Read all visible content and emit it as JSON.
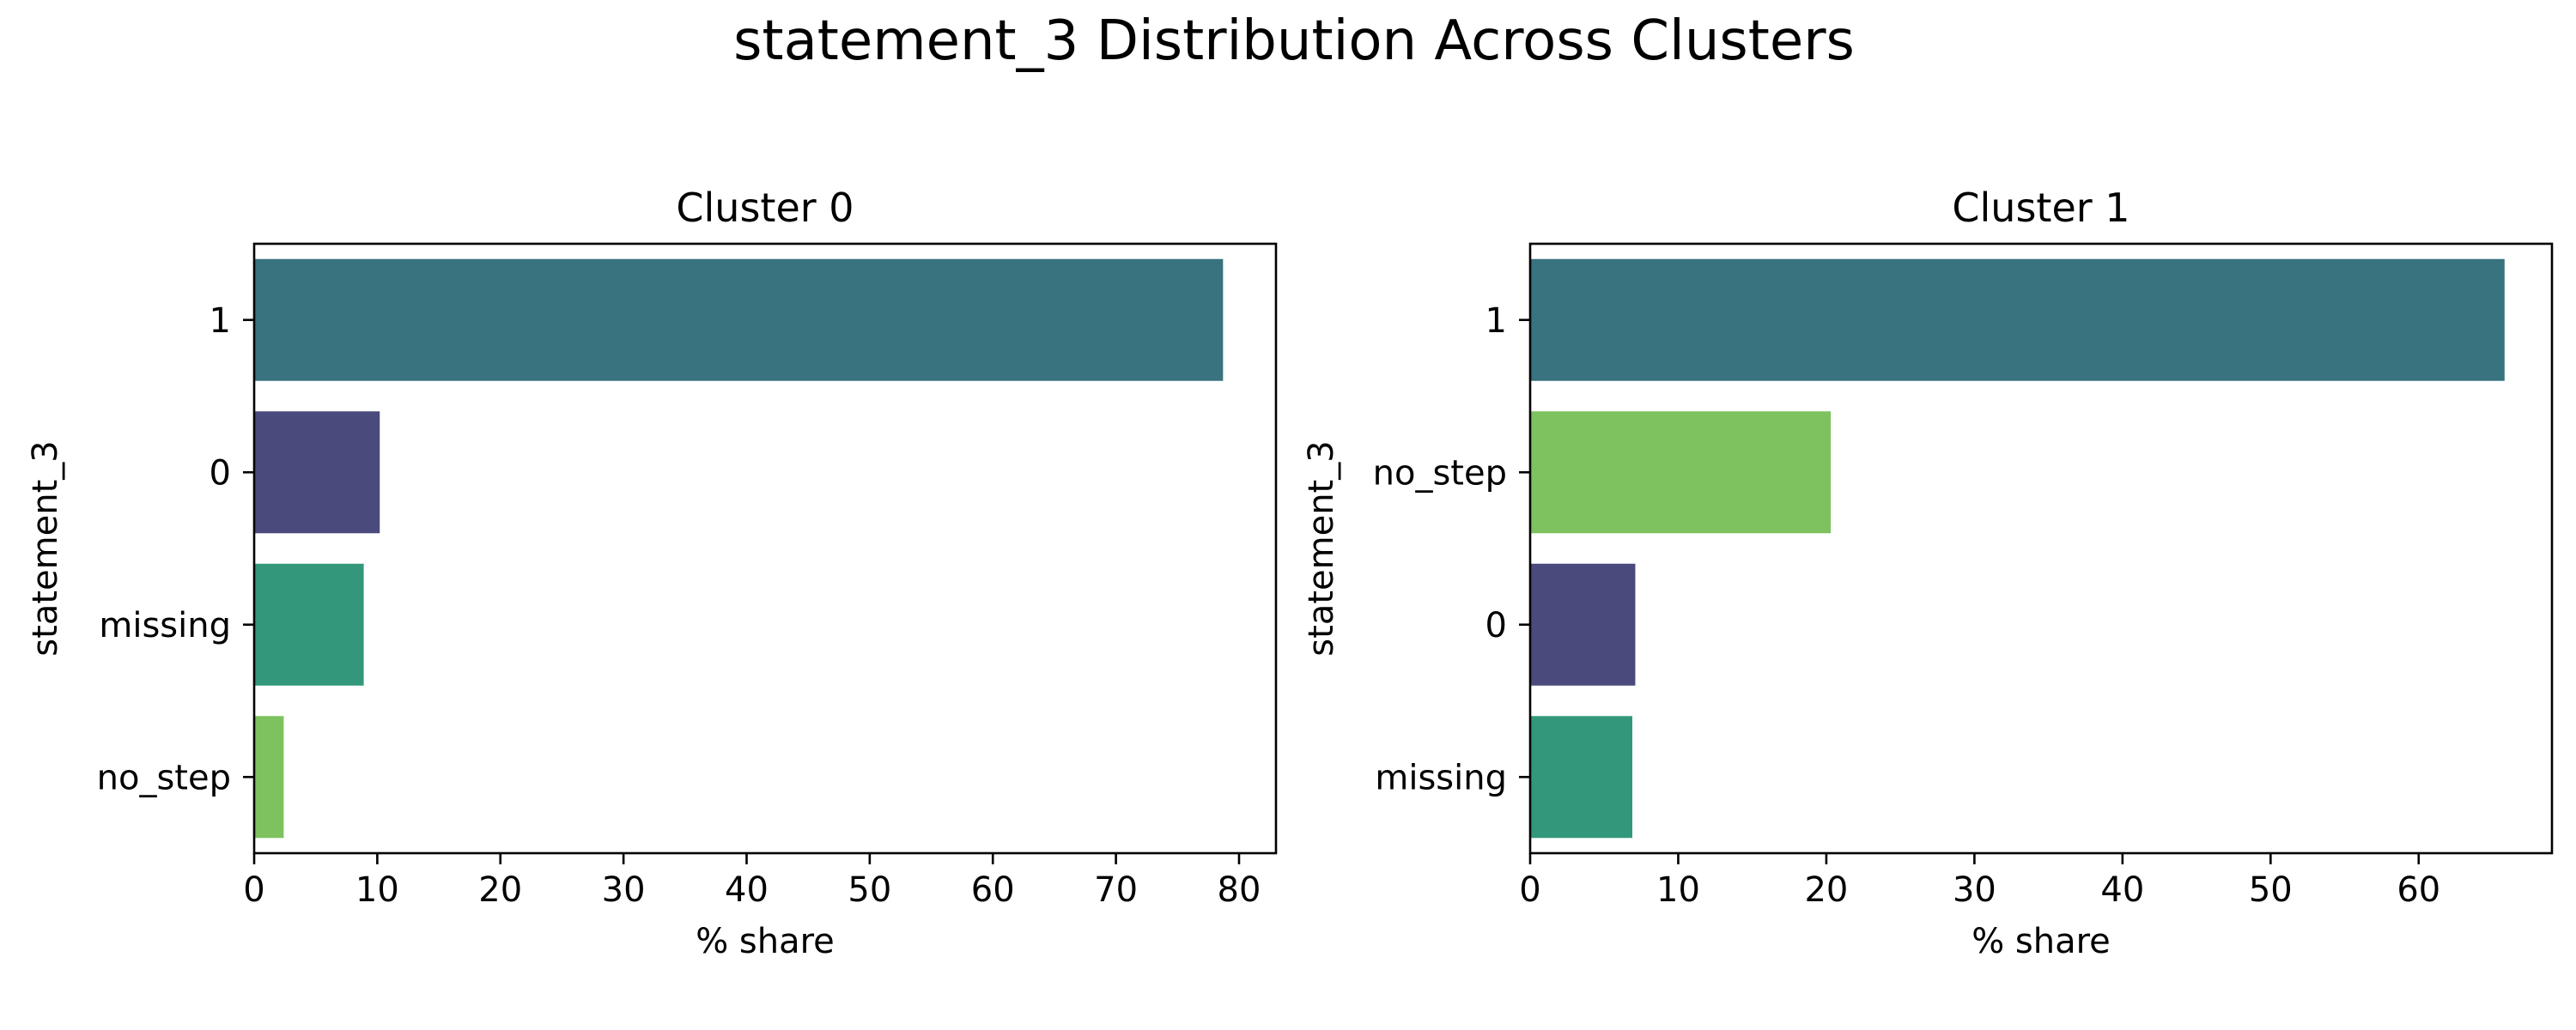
{
  "figure": {
    "title": "statement_3 Distribution Across Clusters"
  },
  "chart_data": [
    {
      "type": "bar",
      "orientation": "horizontal",
      "title": "Cluster 0",
      "xlabel": "% share",
      "ylabel": "statement_3",
      "categories": [
        "1",
        "0",
        "missing",
        "no_step"
      ],
      "values": [
        78.7,
        10.2,
        8.9,
        2.4
      ],
      "colors": [
        "#38737f",
        "#4a4a7c",
        "#33987b",
        "#7dc25f"
      ],
      "xlim": [
        0,
        83
      ],
      "xticks": [
        0,
        10,
        20,
        30,
        40,
        50,
        60,
        70,
        80
      ],
      "grid": false,
      "legend": "none"
    },
    {
      "type": "bar",
      "orientation": "horizontal",
      "title": "Cluster 1",
      "xlabel": "% share",
      "ylabel": "statement_3",
      "categories": [
        "1",
        "no_step",
        "0",
        "missing"
      ],
      "values": [
        65.8,
        20.3,
        7.1,
        6.9
      ],
      "colors": [
        "#38737f",
        "#7dc25f",
        "#4a4a7c",
        "#33987b"
      ],
      "xlim": [
        0,
        69
      ],
      "xticks": [
        0,
        10,
        20,
        30,
        40,
        50,
        60
      ],
      "grid": false,
      "legend": "none"
    }
  ]
}
